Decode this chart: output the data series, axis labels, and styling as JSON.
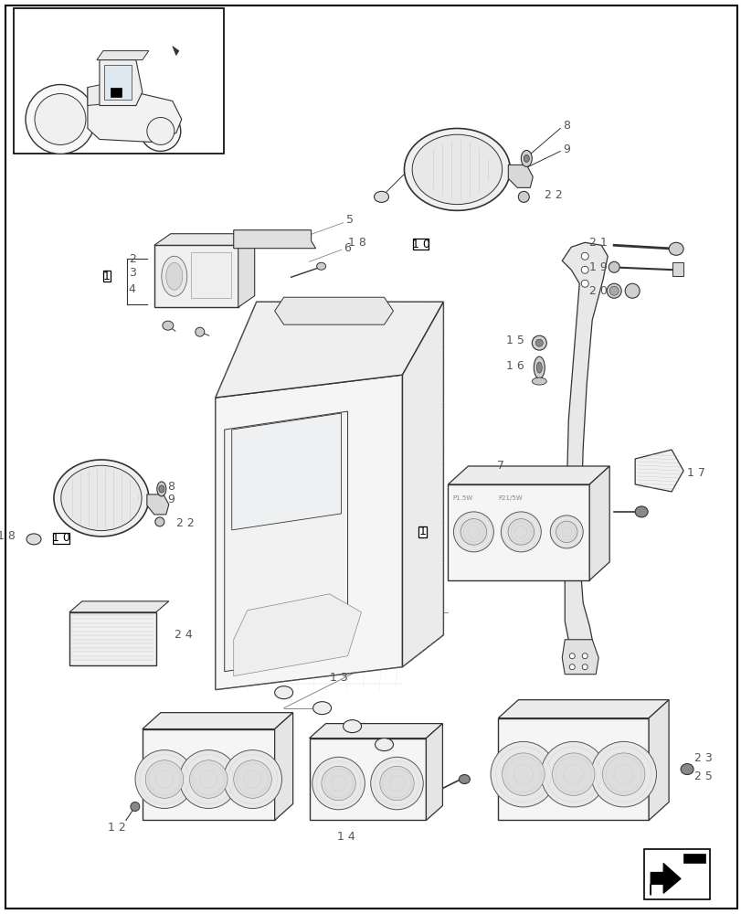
{
  "background_color": "#ffffff",
  "fig_width": 8.12,
  "fig_height": 10.0,
  "dpi": 100,
  "line_color": "#333333",
  "label_color": "#555555"
}
